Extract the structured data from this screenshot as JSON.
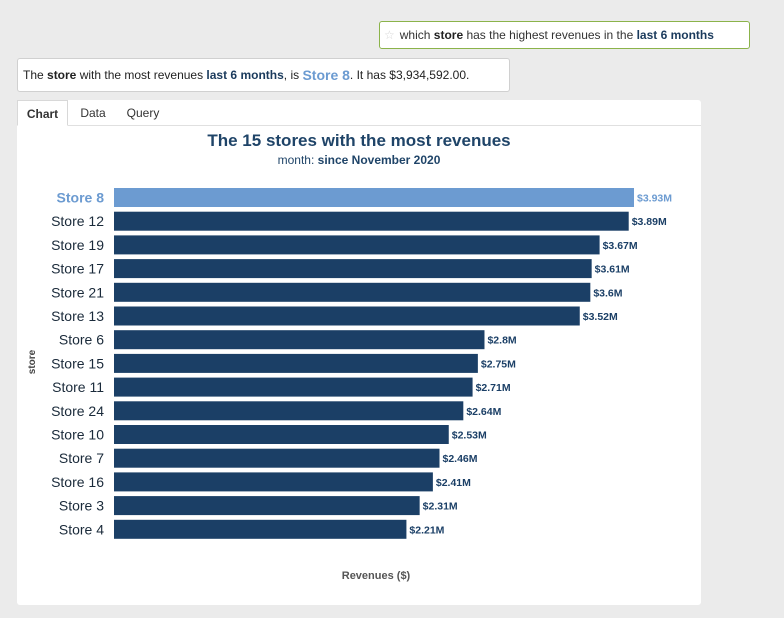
{
  "query": {
    "icon": "star-icon",
    "parts": [
      "which ",
      "store",
      " has the highest revenues in the ",
      "last 6 months"
    ]
  },
  "answer": {
    "parts": [
      "The ",
      "store",
      " with the most revenues ",
      "last 6 months",
      ", is ",
      "Store 8",
      ". It has $3,934,592.00."
    ]
  },
  "tabs": [
    {
      "label": "Chart",
      "active": true
    },
    {
      "label": "Data",
      "active": false
    },
    {
      "label": "Query",
      "active": false
    }
  ],
  "colors": {
    "bar": "#1b3f66",
    "highlight": "#6c9bd1",
    "accent_border": "#8bb34a"
  },
  "chart_data": {
    "type": "bar",
    "orientation": "horizontal",
    "title": "The 15 stores with the most revenues",
    "subtitle_prefix": "month: ",
    "subtitle_value": "since November 2020",
    "xlabel": "Revenues ($)",
    "ylabel": "store",
    "xlim": [
      0,
      3.93
    ],
    "highlighted": "Store 8",
    "grid": false,
    "categories": [
      "Store 8",
      "Store 12",
      "Store 19",
      "Store 17",
      "Store 21",
      "Store 13",
      "Store 6",
      "Store 15",
      "Store 11",
      "Store 24",
      "Store 10",
      "Store 7",
      "Store 16",
      "Store 3",
      "Store 4"
    ],
    "values": [
      3.93,
      3.89,
      3.67,
      3.61,
      3.6,
      3.52,
      2.8,
      2.75,
      2.71,
      2.64,
      2.53,
      2.46,
      2.41,
      2.31,
      2.21
    ],
    "value_labels": [
      "$3.93M",
      "$3.89M",
      "$3.67M",
      "$3.61M",
      "$3.6M",
      "$3.52M",
      "$2.8M",
      "$2.75M",
      "$2.71M",
      "$2.64M",
      "$2.53M",
      "$2.46M",
      "$2.41M",
      "$2.31M",
      "$2.21M"
    ]
  }
}
